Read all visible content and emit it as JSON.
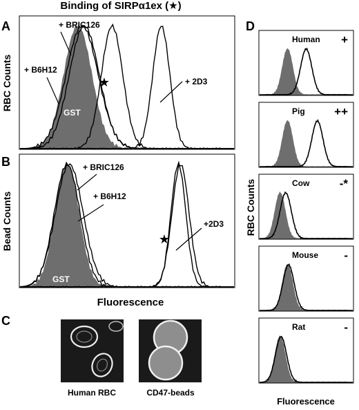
{
  "figure": {
    "title": "Binding of SIRPα1ex (★)",
    "xlabel_left": "Fluorescence",
    "xlabel_right": "Fluorescence",
    "ylabel_A": "RBC Counts",
    "ylabel_B": "Bead Counts",
    "ylabel_D": "RBC Counts",
    "panel_letters": {
      "A": "A",
      "B": "B",
      "C": "C",
      "D": "D"
    },
    "star_symbol": "★",
    "colors": {
      "filled": "#6e6e6e",
      "line": "#000000",
      "background": "#ffffff",
      "micro_bg": "#1a1a1a"
    }
  },
  "panel_A": {
    "labels": {
      "bric": "+ BRIC126",
      "b6h12": "+ B6H12",
      "gst": "GST",
      "d3": "+ 2D3"
    }
  },
  "panel_B": {
    "labels": {
      "bric": "+ BRIC126",
      "b6h12": "+ B6H12",
      "gst": "GST",
      "d3": "+2D3"
    }
  },
  "panel_C": {
    "captions": {
      "rbc": "Human RBC",
      "beads": "CD47-beads"
    }
  },
  "panel_D": {
    "species": [
      {
        "name": "Human",
        "binding": "+"
      },
      {
        "name": "Pig",
        "binding": "++"
      },
      {
        "name": "Cow",
        "binding": "-*"
      },
      {
        "name": "Mouse",
        "binding": "-"
      },
      {
        "name": "Rat",
        "binding": "-"
      }
    ]
  },
  "chart_data": [
    {
      "type": "area",
      "panel": "A",
      "ylabel": "RBC Counts",
      "series": [
        {
          "name": "GST",
          "peak_x": 0.27,
          "width": 0.065,
          "style": "filled"
        },
        {
          "name": "+ BRIC126",
          "peak_x": 0.3,
          "width": 0.07,
          "style": "line"
        },
        {
          "name": "+ B6H12",
          "peak_x": 0.29,
          "width": 0.075,
          "style": "line"
        },
        {
          "name": "SIRPα1ex",
          "peak_x": 0.43,
          "width": 0.05,
          "style": "line"
        },
        {
          "name": "+ 2D3",
          "peak_x": 0.66,
          "width": 0.04,
          "style": "line"
        }
      ]
    },
    {
      "type": "area",
      "panel": "B",
      "ylabel": "Bead Counts",
      "series": [
        {
          "name": "GST",
          "peak_x": 0.22,
          "width": 0.055,
          "style": "filled"
        },
        {
          "name": "+ BRIC126",
          "peak_x": 0.22,
          "width": 0.06,
          "style": "line"
        },
        {
          "name": "+ B6H12",
          "peak_x": 0.23,
          "width": 0.065,
          "style": "line"
        },
        {
          "name": "SIRPα1ex",
          "peak_x": 0.74,
          "width": 0.035,
          "style": "line"
        },
        {
          "name": "+2D3",
          "peak_x": 0.75,
          "width": 0.04,
          "style": "line"
        }
      ]
    },
    {
      "type": "area",
      "panel": "D",
      "subplots": [
        {
          "species": "Human",
          "gst_peak_x": 0.3,
          "sirp_peak_x": 0.5
        },
        {
          "species": "Pig",
          "gst_peak_x": 0.3,
          "sirp_peak_x": 0.62
        },
        {
          "species": "Cow",
          "gst_peak_x": 0.22,
          "sirp_peak_x": 0.28
        },
        {
          "species": "Mouse",
          "gst_peak_x": 0.3,
          "sirp_peak_x": 0.31
        },
        {
          "species": "Rat",
          "gst_peak_x": 0.22,
          "sirp_peak_x": 0.23
        }
      ]
    }
  ]
}
